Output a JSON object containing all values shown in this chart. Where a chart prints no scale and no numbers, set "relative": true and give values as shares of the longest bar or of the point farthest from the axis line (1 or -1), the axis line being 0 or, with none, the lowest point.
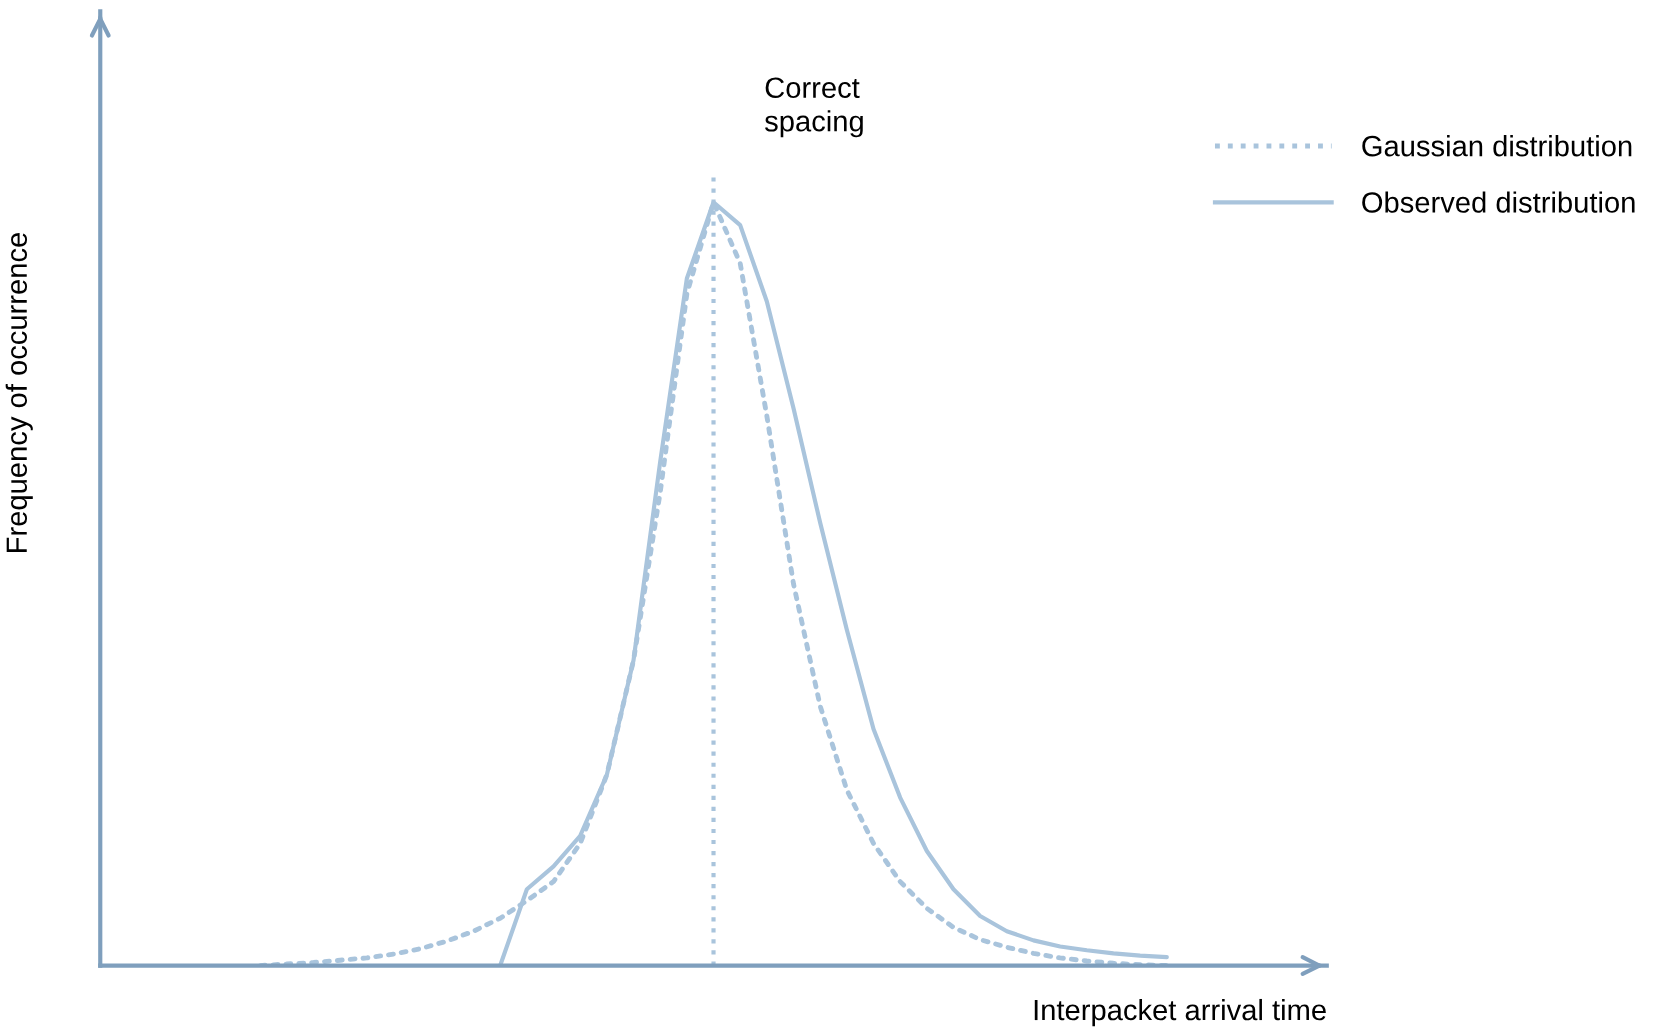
{
  "chart_data": {
    "type": "line",
    "relative": true,
    "xlabel": "Interpacket arrival time",
    "ylabel": "Frequency of occurrence",
    "categories": [
      null,
      null,
      null,
      null,
      null,
      null,
      null,
      null,
      null,
      null,
      null,
      null,
      null,
      null,
      null,
      null,
      null,
      null,
      null,
      null,
      null,
      null,
      null,
      null,
      null,
      null,
      null,
      null,
      null,
      null,
      null,
      null,
      null,
      null,
      null,
      null,
      null,
      null,
      null,
      null,
      null,
      null,
      null,
      null,
      null,
      null,
      null
    ],
    "series": [
      {
        "name": "Gaussian distribution",
        "color": "#a9c4dc",
        "line_style": "dotted",
        "values": [
          null,
          null,
          null,
          null,
          null,
          null,
          0.0,
          0.002,
          0.004,
          0.007,
          0.01,
          0.015,
          0.022,
          0.032,
          0.045,
          0.062,
          0.085,
          0.11,
          0.16,
          0.25,
          0.4,
          0.62,
          0.88,
          1.0,
          0.92,
          0.72,
          0.5,
          0.34,
          0.23,
          0.16,
          0.11,
          0.075,
          0.05,
          0.034,
          0.024,
          0.016,
          0.01,
          0.006,
          0.003,
          0.001,
          0.0,
          null,
          null,
          null,
          null,
          null,
          null
        ]
      },
      {
        "name": "Observed distribution",
        "color": "#a9c4dc",
        "line_style": "solid",
        "values": [
          null,
          null,
          null,
          null,
          null,
          null,
          null,
          null,
          null,
          null,
          null,
          null,
          null,
          null,
          null,
          0.0,
          0.1,
          0.13,
          0.17,
          0.25,
          0.4,
          0.66,
          0.9,
          1.0,
          0.97,
          0.87,
          0.73,
          0.58,
          0.44,
          0.31,
          0.22,
          0.15,
          0.1,
          0.065,
          0.045,
          0.033,
          0.025,
          0.02,
          0.016,
          0.013,
          0.011,
          null,
          null,
          null,
          null,
          null,
          null
        ]
      }
    ],
    "annotations": [
      "Correct\nspacing"
    ],
    "legend": "top right",
    "grid": false,
    "marker": "none"
  }
}
